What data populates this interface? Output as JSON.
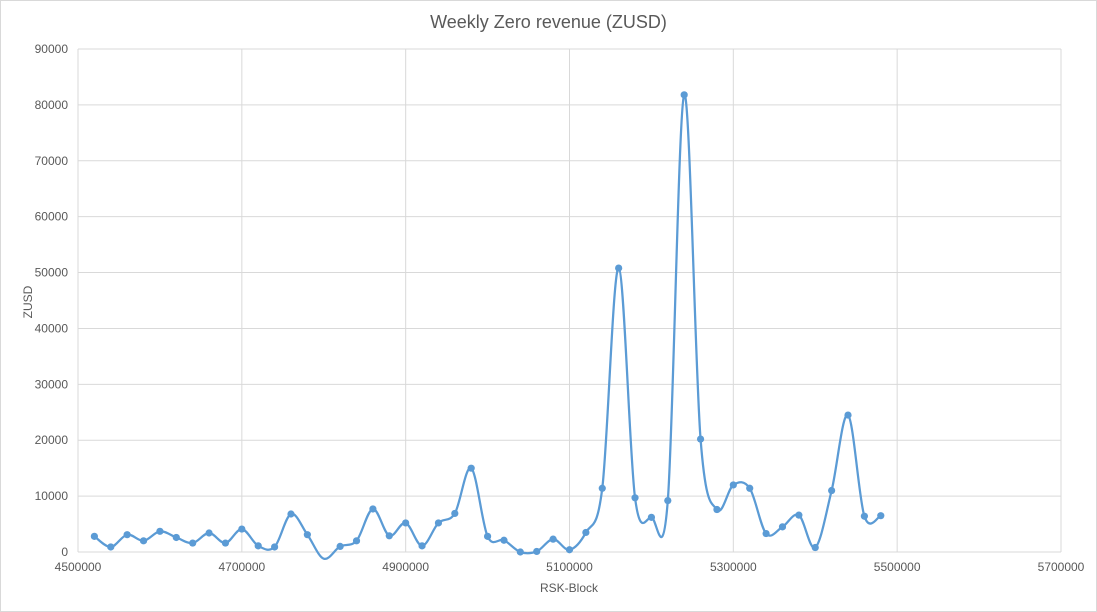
{
  "chart_data": {
    "type": "scatter",
    "style": "smooth-line-with-markers",
    "title": "Weekly Zero revenue (ZUSD)",
    "xlabel": "RSK-Block",
    "ylabel": "ZUSD",
    "xlim": [
      4500000,
      5700000
    ],
    "ylim": [
      0,
      90000
    ],
    "xticks": [
      "4500000",
      "4700000",
      "4900000",
      "5100000",
      "5300000",
      "5500000",
      "5700000"
    ],
    "yticks": [
      "0",
      "10000",
      "20000",
      "30000",
      "40000",
      "50000",
      "60000",
      "70000",
      "80000",
      "90000"
    ],
    "grid": true,
    "legend": "none",
    "color": "#5b9bd5",
    "series": [
      {
        "x": [
          4520000,
          4540000,
          4560000,
          4580000,
          4600000,
          4620000,
          4640000,
          4660000,
          4680000,
          4700000,
          4720000,
          4740000,
          4760000,
          4780000,
          4800000,
          4820000,
          4840000,
          4860000,
          4880000,
          4900000,
          4920000,
          4940000,
          4960000,
          4980000,
          5000000,
          5020000,
          5040000,
          5060000,
          5080000,
          5100000,
          5120000,
          5140000,
          5160000,
          5180000,
          5200000,
          5220000,
          5240000,
          5260000,
          5280000,
          5300000,
          5320000,
          5340000,
          5360000,
          5380000,
          5400000,
          5420000,
          5440000,
          5460000,
          5480000
        ],
        "y": [
          2800,
          900,
          3100,
          2000,
          3700,
          2600,
          1600,
          3400,
          1600,
          4100,
          1100,
          900,
          6800,
          3100,
          -1200,
          1000,
          2000,
          7700,
          2900,
          5200,
          1100,
          5200,
          6900,
          15000,
          2800,
          2100,
          0,
          100,
          2300,
          400,
          3500,
          11400,
          50800,
          9700,
          6200,
          9200,
          81800,
          20200,
          7600,
          12000,
          11400,
          3300,
          4500,
          6600,
          800,
          11000,
          24500,
          6400,
          6500
        ]
      }
    ]
  }
}
